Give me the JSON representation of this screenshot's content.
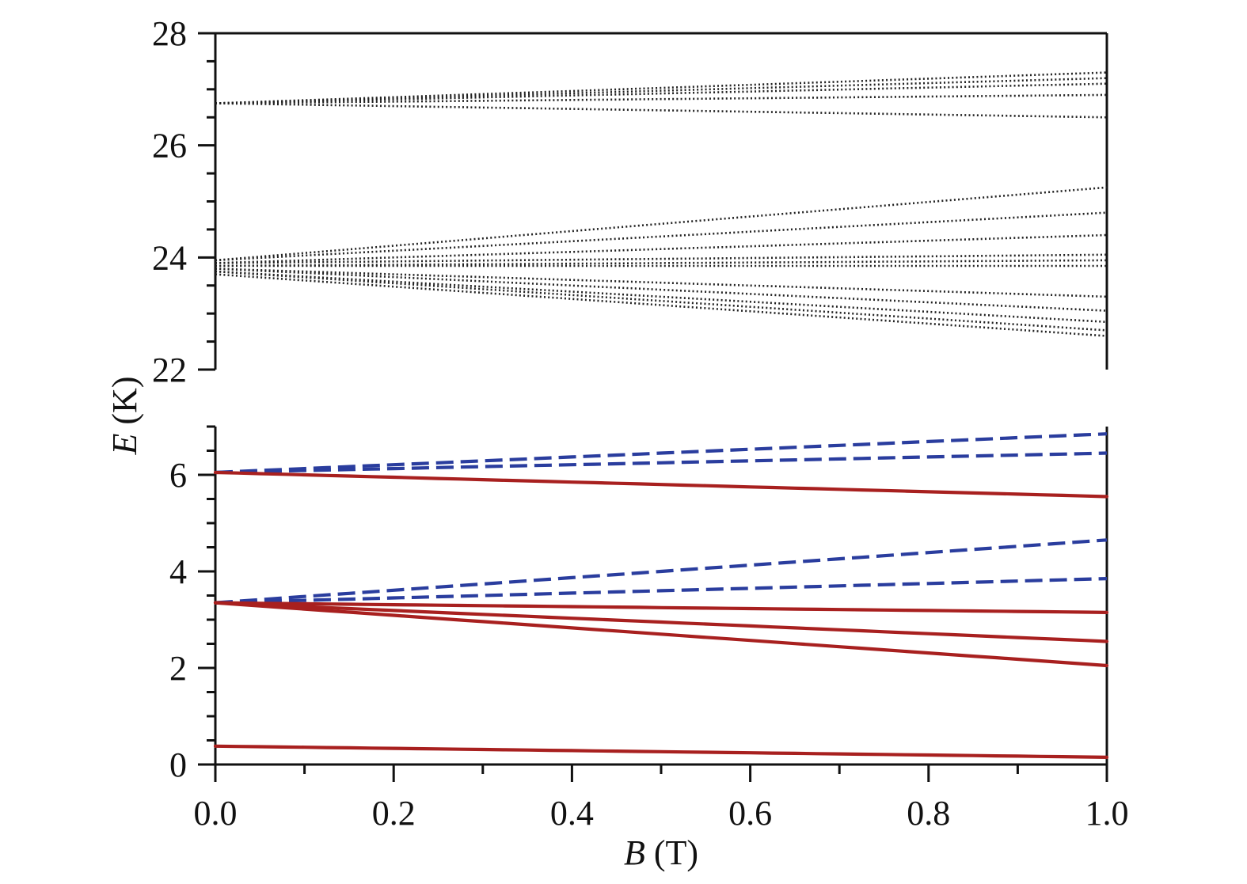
{
  "chart_data": {
    "type": "line",
    "ylabel": {
      "symbol": "E",
      "unit": " (K)"
    },
    "xlabel": {
      "symbol": "B",
      "unit": " (T)"
    },
    "x": [
      0.0,
      0.1,
      0.2,
      0.3,
      0.4,
      0.5,
      0.6,
      0.7,
      0.8,
      0.9,
      1.0
    ],
    "xlim": [
      0.0,
      1.0
    ],
    "xticks": [
      "0.0",
      "0.2",
      "0.4",
      "0.6",
      "0.8",
      "1.0"
    ],
    "colors": {
      "solid": "#a8201f",
      "dashed": "#2a3d9e",
      "dotted": "#222222"
    },
    "panels": [
      {
        "position": "top",
        "ylim": [
          22,
          28
        ],
        "yticks": [
          "22",
          "24",
          "26",
          "28"
        ],
        "series": [
          {
            "style": "dotted",
            "y0": 26.75,
            "y1": 27.3
          },
          {
            "style": "dotted",
            "y0": 26.75,
            "y1": 27.2
          },
          {
            "style": "dotted",
            "y0": 26.75,
            "y1": 27.1
          },
          {
            "style": "dotted",
            "y0": 26.75,
            "y1": 26.9
          },
          {
            "style": "dotted",
            "y0": 26.75,
            "y1": 26.5
          },
          {
            "style": "dotted",
            "y0": 23.95,
            "y1": 25.25
          },
          {
            "style": "dotted",
            "y0": 23.95,
            "y1": 24.8
          },
          {
            "style": "dotted",
            "y0": 23.9,
            "y1": 24.4
          },
          {
            "style": "dotted",
            "y0": 23.9,
            "y1": 24.05
          },
          {
            "style": "dotted",
            "y0": 23.85,
            "y1": 23.95
          },
          {
            "style": "dotted",
            "y0": 23.85,
            "y1": 23.85
          },
          {
            "style": "dotted",
            "y0": 23.8,
            "y1": 23.3
          },
          {
            "style": "dotted",
            "y0": 23.8,
            "y1": 23.05
          },
          {
            "style": "dotted",
            "y0": 23.75,
            "y1": 22.85
          },
          {
            "style": "dotted",
            "y0": 23.75,
            "y1": 22.7
          },
          {
            "style": "dotted",
            "y0": 23.7,
            "y1": 22.6
          }
        ]
      },
      {
        "position": "bottom",
        "ylim": [
          0,
          7
        ],
        "yticks": [
          "0",
          "2",
          "4",
          "6"
        ],
        "series": [
          {
            "style": "dashed",
            "y0": 6.05,
            "y1": 6.85
          },
          {
            "style": "dashed",
            "y0": 6.05,
            "y1": 6.45
          },
          {
            "style": "solid",
            "y0": 6.05,
            "y1": 5.55
          },
          {
            "style": "dashed",
            "y0": 3.35,
            "y1": 4.65
          },
          {
            "style": "dashed",
            "y0": 3.35,
            "y1": 3.85
          },
          {
            "style": "solid",
            "y0": 3.35,
            "y1": 3.15
          },
          {
            "style": "solid",
            "y0": 3.35,
            "y1": 2.55
          },
          {
            "style": "solid",
            "y0": 3.35,
            "y1": 2.05
          },
          {
            "style": "solid",
            "y0": 0.38,
            "y1": 0.15
          }
        ]
      }
    ]
  }
}
